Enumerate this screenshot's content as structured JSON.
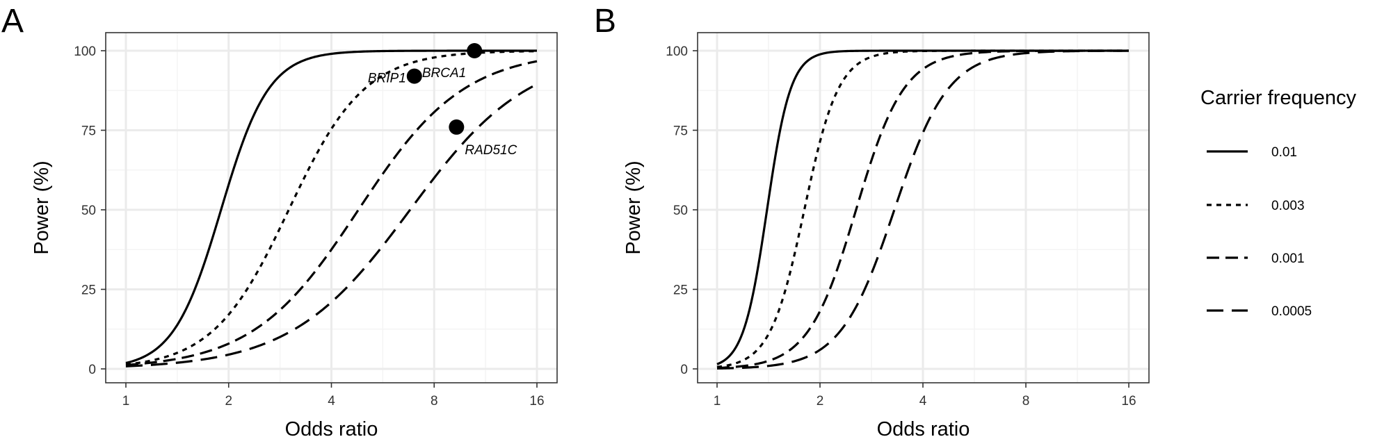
{
  "chart_data": [
    {
      "type": "line",
      "panel_label": "A",
      "xlabel": "Odds ratio",
      "ylabel": "Power (%)",
      "x_scale": "log2",
      "xlim": [
        1,
        16
      ],
      "ylim": [
        0,
        100
      ],
      "x_ticks": [
        "1",
        "2",
        "4",
        "8",
        "16"
      ],
      "y_ticks": [
        "0",
        "25",
        "50",
        "75",
        "100"
      ],
      "grid": true,
      "series": [
        {
          "name": "0.01",
          "linestyle": "solid",
          "midpoint_or": 1.9,
          "steepness": 6.2
        },
        {
          "name": "0.003",
          "linestyle": "dotted",
          "midpoint_or": 3.0,
          "steepness": 3.9
        },
        {
          "name": "0.001",
          "linestyle": "dashed",
          "midpoint_or": 4.8,
          "steepness": 2.8
        },
        {
          "name": "0.0005",
          "linestyle": "longdash",
          "midpoint_or": 6.8,
          "steepness": 2.5
        }
      ],
      "points": [
        {
          "label": "BRIP1",
          "x": 7.0,
          "y": 92
        },
        {
          "label": "BRCA1",
          "x": 10.5,
          "y": 100
        },
        {
          "label": "RAD51C",
          "x": 9.3,
          "y": 76
        }
      ]
    },
    {
      "type": "line",
      "panel_label": "B",
      "xlabel": "Odds ratio",
      "ylabel": "Power (%)",
      "x_scale": "log2",
      "xlim": [
        1,
        16
      ],
      "ylim": [
        0,
        100
      ],
      "x_ticks": [
        "1",
        "2",
        "4",
        "8",
        "16"
      ],
      "y_ticks": [
        "0",
        "25",
        "50",
        "75",
        "100"
      ],
      "grid": true,
      "series": [
        {
          "name": "0.01",
          "linestyle": "solid",
          "midpoint_or": 1.4,
          "steepness": 12.5
        },
        {
          "name": "0.003",
          "linestyle": "dotted",
          "midpoint_or": 1.8,
          "steepness": 8.7
        },
        {
          "name": "0.001",
          "linestyle": "dashed",
          "midpoint_or": 2.55,
          "steepness": 6.2
        },
        {
          "name": "0.0005",
          "linestyle": "longdash",
          "midpoint_or": 3.3,
          "steepness": 5.5
        }
      ],
      "points": []
    }
  ],
  "legend": {
    "title": "Carrier frequency",
    "placement": "right",
    "items": [
      {
        "label": "0.01",
        "linestyle": "solid"
      },
      {
        "label": "0.003",
        "linestyle": "dotted"
      },
      {
        "label": "0.001",
        "linestyle": "dashed"
      },
      {
        "label": "0.0005",
        "linestyle": "longdash"
      }
    ]
  }
}
